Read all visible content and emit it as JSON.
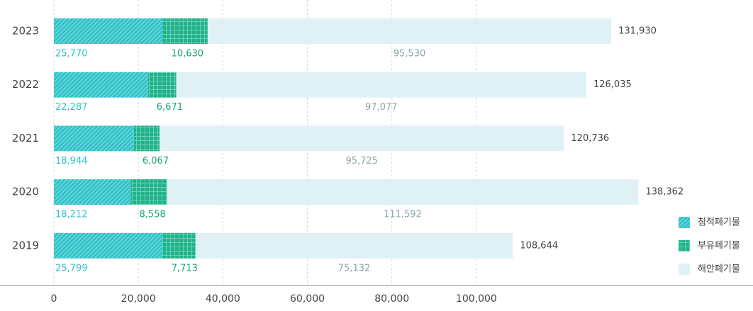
{
  "chart_data": {
    "type": "stacked-bar",
    "orientation": "horizontal",
    "categories": [
      "2023",
      "2022",
      "2021",
      "2020",
      "2019"
    ],
    "series": [
      {
        "name": "침적폐기물",
        "color": "#2fc3c9",
        "label_color": "#2fc3c9",
        "hatch": "diagonal",
        "values": [
          25770,
          22287,
          18944,
          18212,
          25799
        ],
        "value_labels": [
          "25,770",
          "22,287",
          "18,944",
          "18,212",
          "25,799"
        ]
      },
      {
        "name": "부유폐기물",
        "color": "#1fb38a",
        "label_color": "#14a47c",
        "hatch": "grid",
        "values": [
          10630,
          6671,
          6067,
          8558,
          7713
        ],
        "value_labels": [
          "10,630",
          "6,671",
          "6,067",
          "8,558",
          "7,713"
        ]
      },
      {
        "name": "해안폐기물",
        "color": "#dff1f4",
        "label_color": "#8aa6aa",
        "hatch": null,
        "values": [
          95530,
          97077,
          95725,
          111592,
          75132
        ],
        "value_labels": [
          "95,530",
          "97,077",
          "95,725",
          "111,592",
          "75,132"
        ]
      }
    ],
    "totals": [
      131930,
      126035,
      120736,
      138362,
      108644
    ],
    "total_labels": [
      "131,930",
      "126,035",
      "120,736",
      "138,362",
      "108,644"
    ],
    "xlim": [
      0,
      145000
    ],
    "xticks": [
      0,
      {
        "value": 20000,
        "label": "20,000"
      },
      {
        "value": 40000,
        "label": "40,000"
      },
      {
        "value": 60000,
        "label": "60,000"
      },
      {
        "value": 80000,
        "label": "80,000"
      },
      {
        "value": 100000,
        "label": "100,000"
      }
    ],
    "grid": true,
    "legend": "bottom-right"
  }
}
